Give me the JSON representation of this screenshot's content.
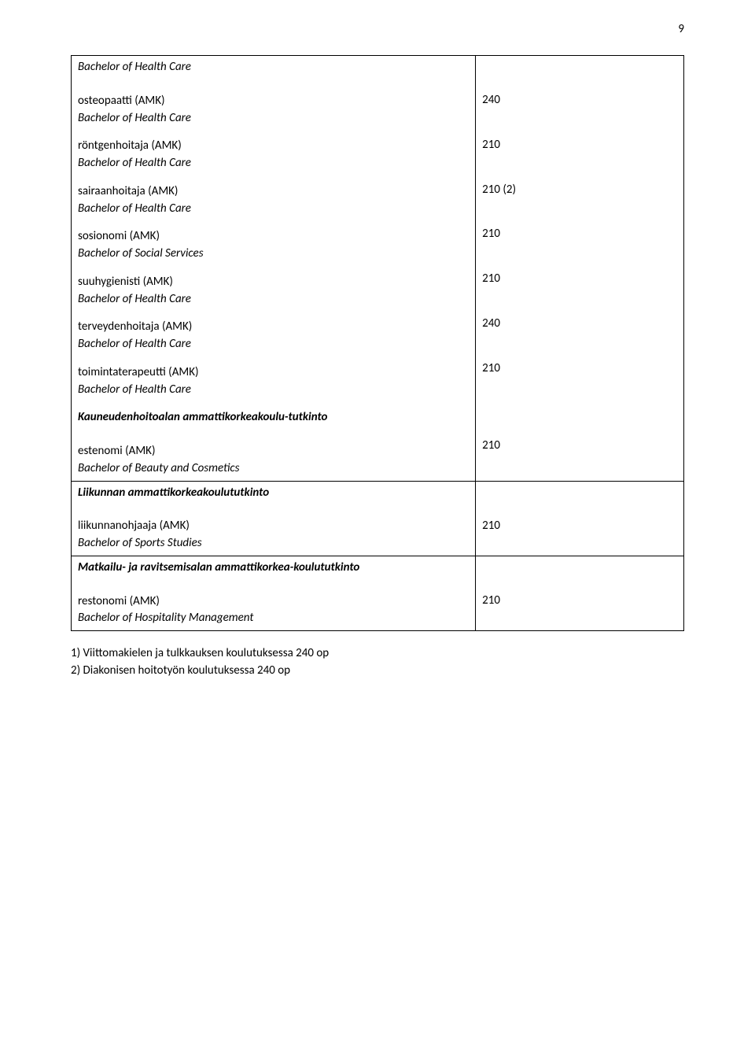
{
  "page_number": "9",
  "cell1": {
    "leading_italic": "Bachelor of Health Care",
    "entries": [
      {
        "title": "osteopaatti (AMK)",
        "sub": "Bachelor of Health Care",
        "value": "240"
      },
      {
        "title": "röntgenhoitaja (AMK)",
        "sub": "Bachelor of Health Care",
        "value": "210"
      },
      {
        "title": "sairaanhoitaja (AMK)",
        "sub": "Bachelor of Health Care",
        "value": "210 (2)"
      },
      {
        "title": "sosionomi (AMK)",
        "sub": "Bachelor of Social Services",
        "value": "210"
      },
      {
        "title": "suuhygienisti (AMK)",
        "sub": "Bachelor of Health Care",
        "value": "210"
      },
      {
        "title": "terveydenhoitaja (AMK)",
        "sub": "Bachelor of Health Care",
        "value": "240"
      },
      {
        "title": "toimintaterapeutti (AMK)",
        "sub": "Bachelor of Health Care",
        "value": "210"
      }
    ],
    "group2": {
      "heading": "Kauneudenhoitoalan ammattikorkeakoulu-tutkinto",
      "title": "estenomi (AMK)",
      "sub": "Bachelor of Beauty and Cosmetics",
      "value": "210"
    }
  },
  "cell2": {
    "heading": "Liikunnan ammattikorkeakoulututkinto",
    "title": "liikunnanohjaaja (AMK)",
    "sub": "Bachelor of Sports Studies",
    "value": "210"
  },
  "cell3": {
    "heading": "Matkailu- ja ravitsemisalan ammattikorkea-koulututkinto",
    "title": "restonomi (AMK)",
    "sub": "Bachelor of Hospitality Management",
    "value": "210"
  },
  "footnotes": {
    "line1": "1) Viittomakielen ja tulkkauksen koulutuksessa 240 op",
    "line2": "2) Diakonisen hoitotyön koulutuksessa 240 op"
  }
}
